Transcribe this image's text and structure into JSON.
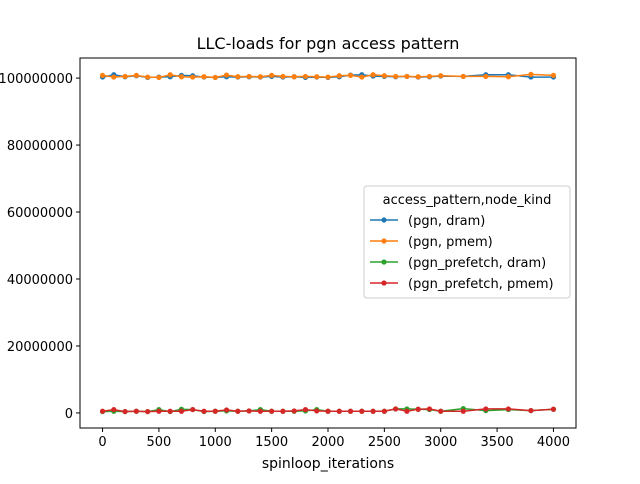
{
  "chart_data": {
    "type": "line",
    "title": "LLC-loads for pgn access pattern",
    "xlabel": "spinloop_iterations",
    "ylabel": "",
    "xlim": [
      -200,
      4200
    ],
    "ylim": [
      -4500000,
      106000000
    ],
    "x_ticks": [
      0,
      500,
      1000,
      1500,
      2000,
      2500,
      3000,
      3500,
      4000
    ],
    "x_tick_labels": [
      "0",
      "500",
      "1000",
      "1500",
      "2000",
      "2500",
      "3000",
      "3500",
      "4000"
    ],
    "y_ticks": [
      0,
      20000000,
      40000000,
      60000000,
      80000000,
      100000000
    ],
    "y_tick_labels": [
      "0",
      "20000000",
      "40000000",
      "60000000",
      "80000000",
      "100000000"
    ],
    "grid": false,
    "legend": {
      "title": "access_pattern,node_kind",
      "placement": "center-right"
    },
    "x": [
      0,
      100,
      200,
      300,
      400,
      500,
      600,
      700,
      800,
      900,
      1000,
      1100,
      1200,
      1300,
      1400,
      1500,
      1600,
      1700,
      1800,
      1900,
      2000,
      2100,
      2200,
      2300,
      2400,
      2500,
      2600,
      2700,
      2800,
      2900,
      3000,
      3200,
      3400,
      3600,
      3800,
      4000
    ],
    "series": [
      {
        "name": "(pgn, dram)",
        "color": "#1f77b4",
        "values": [
          100300000,
          101000000,
          100400000,
          100700000,
          100200000,
          100300000,
          100400000,
          100800000,
          100700000,
          100300000,
          100200000,
          100400000,
          100300000,
          100400000,
          100300000,
          100500000,
          100300000,
          100400000,
          100200000,
          100300000,
          100200000,
          100400000,
          100900000,
          101000000,
          100600000,
          100500000,
          100400000,
          100500000,
          100300000,
          100400000,
          100600000,
          100500000,
          101000000,
          101000000,
          100300000,
          100300000
        ]
      },
      {
        "name": "(pgn, pmem)",
        "color": "#ff7f0e",
        "values": [
          100800000,
          100300000,
          100500000,
          100800000,
          100300000,
          100200000,
          101000000,
          100400000,
          100300000,
          100400000,
          100200000,
          100900000,
          100400000,
          100500000,
          100400000,
          100800000,
          100500000,
          100400000,
          100500000,
          100400000,
          100300000,
          100700000,
          100800000,
          100300000,
          101000000,
          100700000,
          100500000,
          100500000,
          100400000,
          100500000,
          100700000,
          100500000,
          100500000,
          100400000,
          101100000,
          100800000
        ]
      },
      {
        "name": "(pgn_prefetch, dram)",
        "color": "#2ca02c",
        "values": [
          400000,
          500000,
          400000,
          500000,
          400000,
          1000000,
          400000,
          1100000,
          1000000,
          400000,
          500000,
          600000,
          500000,
          600000,
          1000000,
          500000,
          500000,
          500000,
          600000,
          1000000,
          500000,
          500000,
          500000,
          500000,
          500000,
          500000,
          1200000,
          1200000,
          1100000,
          1000000,
          500000,
          1300000,
          700000,
          1000000,
          700000,
          1100000
        ]
      },
      {
        "name": "(pgn_prefetch, pmem)",
        "color": "#d62728",
        "values": [
          500000,
          1000000,
          400000,
          500000,
          400000,
          500000,
          500000,
          500000,
          1000000,
          500000,
          500000,
          900000,
          500000,
          600000,
          500000,
          500000,
          500000,
          600000,
          1000000,
          600000,
          500000,
          500000,
          500000,
          500000,
          500000,
          500000,
          1200000,
          500000,
          1100000,
          1200000,
          500000,
          500000,
          1200000,
          1200000,
          700000,
          1100000
        ]
      }
    ]
  }
}
